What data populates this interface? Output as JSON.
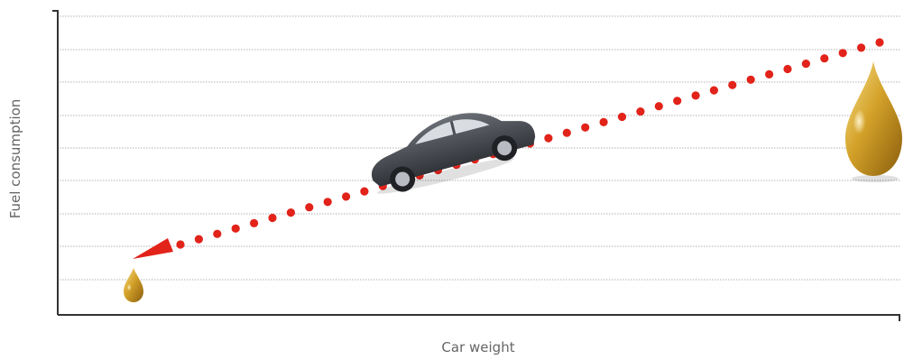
{
  "chart_data": {
    "type": "line",
    "title": "",
    "xlabel": "Car weight",
    "ylabel": "Fuel consumption",
    "grid": true,
    "trend": "increasing",
    "series": [
      {
        "values_relative": [
          0.1,
          0.9
        ]
      }
    ]
  },
  "colors": {
    "dots": "#e2231a",
    "axis": "#333333",
    "grid": "#b0b0b0",
    "label": "#666666",
    "car": "#4a4d53",
    "oil": "#c8941e"
  },
  "icons": [
    "car-icon",
    "small-oil-drop-icon",
    "large-oil-drop-icon",
    "arrowhead-icon"
  ]
}
